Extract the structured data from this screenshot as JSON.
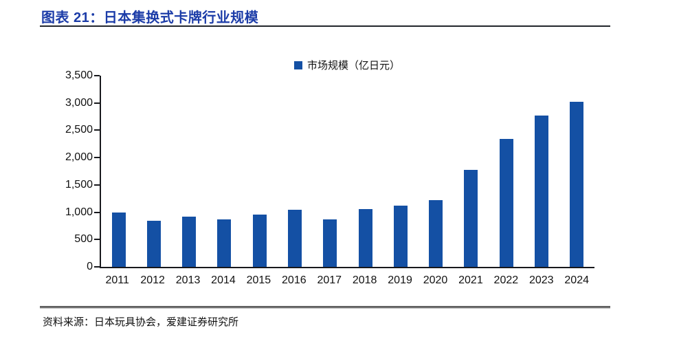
{
  "header": {
    "title": "图表 21：日本集换式卡牌行业规模"
  },
  "footer": {
    "source": "资料来源：日本玩具协会，爱建证券研究所"
  },
  "colors": {
    "title": "#1c3ca8",
    "bar": "#1450a4",
    "axis": "#17181c",
    "text": "#111111"
  },
  "chart_data": {
    "type": "bar",
    "title": "",
    "legend": [
      {
        "label": "市场规模（亿日元）",
        "color": "#1450a4"
      }
    ],
    "legend_position": "top-center",
    "categories": [
      "2011",
      "2012",
      "2013",
      "2014",
      "2015",
      "2016",
      "2017",
      "2018",
      "2019",
      "2020",
      "2021",
      "2022",
      "2023",
      "2024"
    ],
    "series": [
      {
        "name": "市场规模（亿日元）",
        "values": [
          1000,
          850,
          920,
          875,
          960,
          1040,
          870,
          1060,
          1120,
          1220,
          1780,
          2340,
          2770,
          3020
        ]
      }
    ],
    "xlabel": "",
    "ylabel": "",
    "ylim": [
      0,
      3500
    ],
    "ytick_step": 500,
    "ytick_labels": [
      "0",
      "500",
      "1,000",
      "1,500",
      "2,000",
      "2,500",
      "3,000",
      "3,500"
    ],
    "grid": false
  }
}
